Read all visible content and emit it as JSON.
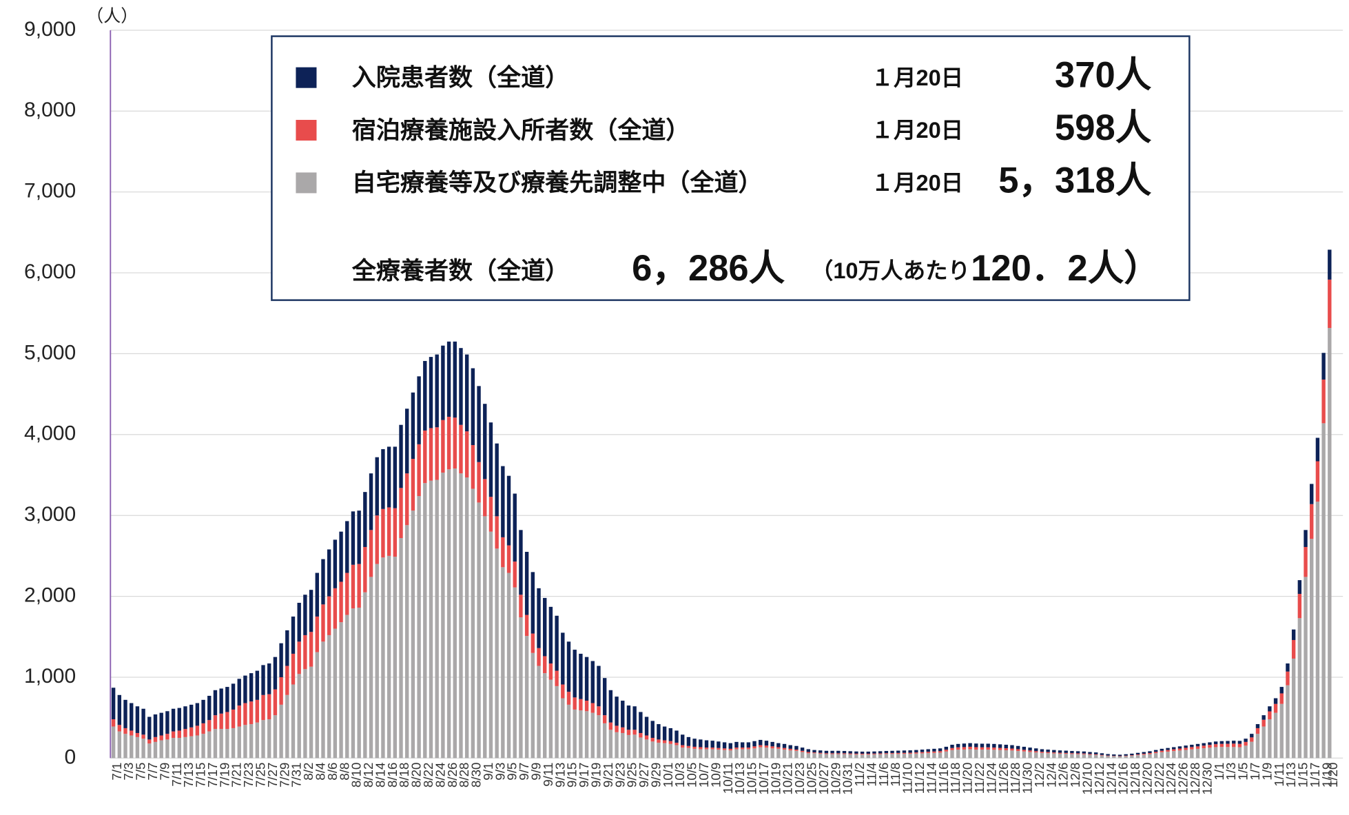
{
  "chart_data": {
    "type": "stacked_bar",
    "y_label": "（人）",
    "categories": [
      "7/1",
      null,
      "7/3",
      null,
      "7/5",
      null,
      "7/7",
      null,
      "7/9",
      null,
      "7/11",
      null,
      "7/13",
      null,
      "7/15",
      null,
      "7/17",
      null,
      "7/19",
      null,
      "7/21",
      null,
      "7/23",
      null,
      "7/25",
      null,
      "7/27",
      null,
      "7/29",
      null,
      "7/31",
      null,
      "8/2",
      null,
      "8/4",
      null,
      "8/6",
      null,
      "8/8",
      null,
      "8/10",
      null,
      "8/12",
      null,
      "8/14",
      null,
      "8/16",
      null,
      "8/18",
      null,
      "8/20",
      null,
      "8/22",
      null,
      "8/24",
      null,
      "8/26",
      null,
      "8/28",
      null,
      "8/30",
      null,
      "9/1",
      null,
      "9/3",
      null,
      "9/5",
      null,
      "9/7",
      null,
      "9/9",
      null,
      "9/11",
      null,
      "9/13",
      null,
      "9/15",
      null,
      "9/17",
      null,
      "9/19",
      null,
      "9/21",
      null,
      "9/23",
      null,
      "9/25",
      null,
      "9/27",
      null,
      "9/29",
      null,
      "10/1",
      null,
      "10/3",
      null,
      "10/5",
      null,
      "10/7",
      null,
      "10/9",
      null,
      "10/11",
      null,
      "10/13",
      null,
      "10/15",
      null,
      "10/17",
      null,
      "10/19",
      null,
      "10/21",
      null,
      "10/23",
      null,
      "10/25",
      null,
      "10/27",
      null,
      "10/29",
      null,
      "10/31",
      null,
      "11/2",
      null,
      "11/4",
      null,
      "11/6",
      null,
      "11/8",
      null,
      "11/10",
      null,
      "11/12",
      null,
      "11/14",
      null,
      "11/16",
      null,
      "11/18",
      null,
      "11/20",
      null,
      "11/22",
      null,
      "11/24",
      null,
      "11/26",
      null,
      "11/28",
      null,
      "11/30",
      null,
      "12/2",
      null,
      "12/4",
      null,
      "12/6",
      null,
      "12/8",
      null,
      "12/10",
      null,
      "12/12",
      null,
      "12/14",
      null,
      "12/16",
      null,
      "12/18",
      null,
      "12/20",
      null,
      "12/22",
      null,
      "12/24",
      null,
      "12/26",
      null,
      "12/28",
      null,
      "12/30",
      null,
      "1/1",
      null,
      "1/3",
      null,
      "1/5",
      null,
      "1/7",
      null,
      "1/9",
      null,
      "1/11",
      null,
      "1/13",
      null,
      "1/15",
      null,
      "1/17",
      null,
      "1/19",
      "1/20"
    ],
    "series": [
      {
        "name": "入院患者数（全道）",
        "color": "#0d2257",
        "values": [
          390,
          370,
          350,
          340,
          330,
          320,
          280,
          280,
          280,
          280,
          280,
          280,
          280,
          280,
          280,
          290,
          300,
          310,
          310,
          310,
          320,
          330,
          340,
          350,
          360,
          370,
          380,
          400,
          420,
          440,
          460,
          480,
          500,
          520,
          540,
          560,
          580,
          600,
          620,
          640,
          660,
          660,
          680,
          700,
          720,
          740,
          750,
          760,
          780,
          800,
          820,
          840,
          860,
          880,
          900,
          920,
          930,
          940,
          950,
          950,
          950,
          940,
          930,
          920,
          900,
          880,
          860,
          840,
          800,
          780,
          760,
          740,
          720,
          700,
          680,
          640,
          620,
          590,
          560,
          540,
          520,
          500,
          460,
          400,
          360,
          330,
          300,
          290,
          260,
          230,
          210,
          190,
          170,
          160,
          150,
          130,
          110,
          100,
          95,
          90,
          85,
          80,
          75,
          70,
          70,
          65,
          65,
          65,
          65,
          60,
          55,
          50,
          50,
          45,
          45,
          40,
          35,
          30,
          30,
          30,
          30,
          30,
          28,
          28,
          27,
          26,
          26,
          26,
          27,
          27,
          28,
          28,
          29,
          30,
          30,
          31,
          32,
          33,
          34,
          36,
          40,
          42,
          44,
          45,
          45,
          45,
          45,
          45,
          44,
          43,
          42,
          40,
          38,
          36,
          34,
          32,
          31,
          30,
          29,
          28,
          27,
          26,
          25,
          24,
          23,
          21,
          19,
          18,
          17,
          18,
          19,
          20,
          21,
          22,
          23,
          24,
          25,
          26,
          27,
          28,
          29,
          30,
          31,
          32,
          33,
          34,
          35,
          36,
          37,
          40,
          44,
          50,
          56,
          62,
          70,
          80,
          100,
          130,
          170,
          210,
          250,
          290,
          330,
          370
        ]
      },
      {
        "name": "宿泊療養施設入所者数（全道）",
        "color": "#e84c4c",
        "values": [
          90,
          80,
          70,
          60,
          50,
          50,
          50,
          60,
          60,
          70,
          80,
          90,
          100,
          110,
          120,
          130,
          140,
          170,
          190,
          210,
          230,
          260,
          270,
          280,
          280,
          310,
          310,
          320,
          340,
          360,
          380,
          400,
          420,
          430,
          440,
          460,
          480,
          500,
          500,
          520,
          540,
          540,
          560,
          580,
          600,
          600,
          600,
          600,
          620,
          640,
          640,
          640,
          650,
          650,
          650,
          650,
          650,
          630,
          600,
          570,
          540,
          500,
          460,
          430,
          400,
          370,
          340,
          320,
          280,
          260,
          240,
          220,
          210,
          200,
          190,
          170,
          160,
          150,
          140,
          130,
          120,
          110,
          100,
          90,
          80,
          70,
          65,
          60,
          55,
          50,
          45,
          40,
          35,
          35,
          30,
          30,
          25,
          25,
          25,
          20,
          20,
          20,
          20,
          20,
          20,
          20,
          20,
          25,
          25,
          25,
          25,
          20,
          20,
          20,
          15,
          15,
          15,
          10,
          10,
          10,
          10,
          10,
          10,
          10,
          10,
          10,
          10,
          10,
          10,
          10,
          10,
          12,
          12,
          12,
          14,
          15,
          16,
          17,
          18,
          22,
          26,
          28,
          30,
          30,
          30,
          28,
          28,
          27,
          26,
          25,
          24,
          22,
          20,
          18,
          16,
          14,
          13,
          12,
          11,
          10,
          10,
          10,
          10,
          9,
          8,
          7,
          6,
          5,
          5,
          6,
          7,
          9,
          11,
          13,
          16,
          18,
          20,
          22,
          24,
          26,
          28,
          30,
          32,
          34,
          36,
          38,
          40,
          42,
          42,
          46,
          54,
          70,
          84,
          98,
          110,
          130,
          170,
          230,
          300,
          370,
          430,
          500,
          540,
          598
        ]
      },
      {
        "name": "自宅療養等及び療養先調整中（全道）",
        "color": "#aaa8a9",
        "values": [
          390,
          330,
          300,
          280,
          260,
          240,
          180,
          200,
          220,
          230,
          250,
          250,
          260,
          270,
          280,
          300,
          330,
          360,
          360,
          360,
          370,
          390,
          410,
          420,
          440,
          470,
          480,
          530,
          660,
          780,
          910,
          1040,
          1100,
          1130,
          1310,
          1440,
          1520,
          1600,
          1680,
          1770,
          1850,
          1860,
          2050,
          2240,
          2400,
          2480,
          2500,
          2490,
          2720,
          2880,
          3060,
          3240,
          3400,
          3430,
          3440,
          3530,
          3570,
          3580,
          3520,
          3470,
          3330,
          3160,
          2990,
          2800,
          2590,
          2360,
          2290,
          2110,
          1740,
          1510,
          1300,
          1140,
          1050,
          970,
          890,
          740,
          660,
          600,
          590,
          580,
          560,
          530,
          430,
          350,
          320,
          310,
          285,
          290,
          255,
          230,
          205,
          190,
          185,
          175,
          160,
          130,
          125,
          115,
          110,
          110,
          110,
          105,
          100,
          95,
          110,
          110,
          110,
          120,
          135,
          130,
          120,
          115,
          105,
          95,
          90,
          75,
          60,
          60,
          55,
          50,
          50,
          50,
          50,
          47,
          45,
          44,
          44,
          46,
          48,
          51,
          52,
          52,
          53,
          54,
          56,
          59,
          62,
          65,
          68,
          82,
          99,
          105,
          106,
          110,
          105,
          105,
          105,
          103,
          100,
          97,
          94,
          88,
          82,
          76,
          70,
          64,
          61,
          58,
          55,
          54,
          51,
          49,
          47,
          42,
          39,
          32,
          25,
          22,
          20,
          24,
          29,
          36,
          43,
          50,
          61,
          73,
          80,
          87,
          94,
          101,
          108,
          115,
          122,
          129,
          136,
          138,
          137,
          137,
          134,
          154,
          202,
          300,
          390,
          480,
          560,
          670,
          900,
          1230,
          1730,
          2240,
          2710,
          3170,
          4140,
          5318
        ]
      }
    ],
    "ylim": [
      0,
      9000
    ],
    "yticks": [
      0,
      {
        "value": 1000,
        "label": "1,000"
      },
      {
        "value": 2000,
        "label": "2,000"
      },
      {
        "value": 3000,
        "label": "3,000"
      },
      {
        "value": 4000,
        "label": "4,000"
      },
      {
        "value": 5000,
        "label": "5,000"
      },
      {
        "value": 6000,
        "label": "6,000"
      },
      {
        "value": 7000,
        "label": "7,000"
      },
      {
        "value": 8000,
        "label": "8,000"
      },
      {
        "value": 9000,
        "label": "9,000"
      }
    ],
    "grid": true,
    "legend_notes": [
      {
        "date": "１月20日",
        "label": "370人"
      },
      {
        "date": "１月20日",
        "label": "598人"
      },
      {
        "date": "１月20日",
        "label": "5，318人"
      }
    ],
    "total_note": {
      "name": "全療養者数（全道）",
      "label": "6，286人",
      "per_capita": "（10万人あたり",
      "per_capita_value": "120．2人）"
    }
  }
}
